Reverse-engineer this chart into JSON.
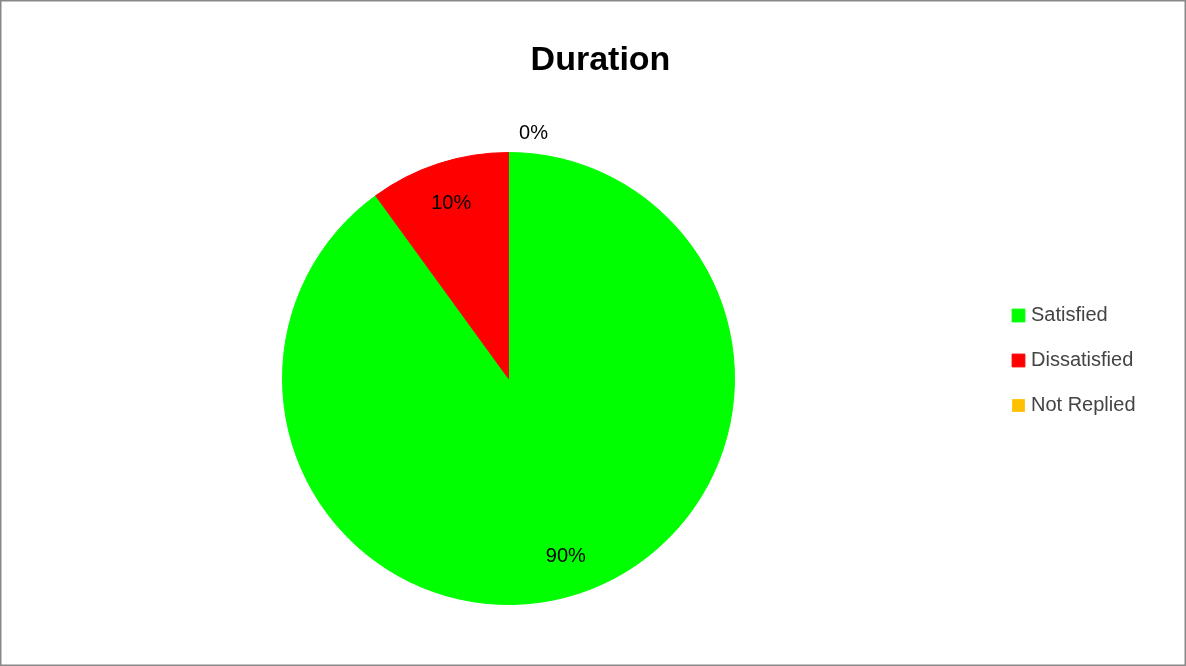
{
  "chart_data": {
    "type": "pie",
    "title": "Duration",
    "categories": [
      "Satisfied",
      "Dissatisfied",
      "Not Replied"
    ],
    "values": [
      90,
      10,
      0
    ],
    "colors": [
      "#00ff00",
      "#ff0000",
      "#ffc000"
    ],
    "value_labels": [
      "90%",
      "10%",
      "0%"
    ],
    "legend": "right"
  }
}
